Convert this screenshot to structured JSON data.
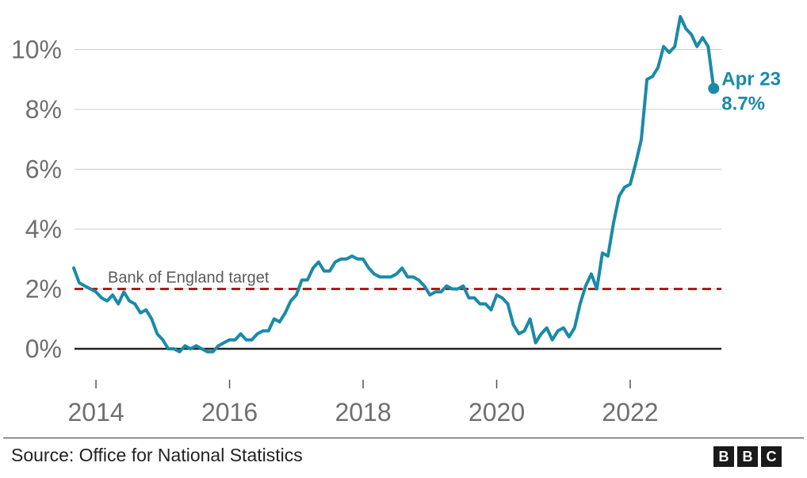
{
  "chart_data": {
    "type": "line",
    "title": "",
    "xlabel": "",
    "ylabel": "",
    "y_ticks": [
      0,
      2,
      4,
      6,
      8,
      10
    ],
    "y_tick_labels": [
      "0%",
      "2%",
      "4%",
      "6%",
      "8%",
      "10%"
    ],
    "ylim": [
      -1.2,
      11.5
    ],
    "x_tick_years": [
      2014,
      2016,
      2018,
      2020,
      2022
    ],
    "x_tick_labels": [
      "2014",
      "2016",
      "2018",
      "2020",
      "2022"
    ],
    "xlim": [
      "2013-09",
      "2023-04"
    ],
    "grid": "horizontal",
    "series": [
      {
        "color": "#1a8aa8",
        "x": [
          "2013-09",
          "2013-10",
          "2013-11",
          "2013-12",
          "2014-01",
          "2014-02",
          "2014-03",
          "2014-04",
          "2014-05",
          "2014-06",
          "2014-07",
          "2014-08",
          "2014-09",
          "2014-10",
          "2014-11",
          "2014-12",
          "2015-01",
          "2015-02",
          "2015-03",
          "2015-04",
          "2015-05",
          "2015-06",
          "2015-07",
          "2015-08",
          "2015-09",
          "2015-10",
          "2015-11",
          "2015-12",
          "2016-01",
          "2016-02",
          "2016-03",
          "2016-04",
          "2016-05",
          "2016-06",
          "2016-07",
          "2016-08",
          "2016-09",
          "2016-10",
          "2016-11",
          "2016-12",
          "2017-01",
          "2017-02",
          "2017-03",
          "2017-04",
          "2017-05",
          "2017-06",
          "2017-07",
          "2017-08",
          "2017-09",
          "2017-10",
          "2017-11",
          "2017-12",
          "2018-01",
          "2018-02",
          "2018-03",
          "2018-04",
          "2018-05",
          "2018-06",
          "2018-07",
          "2018-08",
          "2018-09",
          "2018-10",
          "2018-11",
          "2018-12",
          "2019-01",
          "2019-02",
          "2019-03",
          "2019-04",
          "2019-05",
          "2019-06",
          "2019-07",
          "2019-08",
          "2019-09",
          "2019-10",
          "2019-11",
          "2019-12",
          "2020-01",
          "2020-02",
          "2020-03",
          "2020-04",
          "2020-05",
          "2020-06",
          "2020-07",
          "2020-08",
          "2020-09",
          "2020-10",
          "2020-11",
          "2020-12",
          "2021-01",
          "2021-02",
          "2021-03",
          "2021-04",
          "2021-05",
          "2021-06",
          "2021-07",
          "2021-08",
          "2021-09",
          "2021-10",
          "2021-11",
          "2021-12",
          "2022-01",
          "2022-02",
          "2022-03",
          "2022-04",
          "2022-05",
          "2022-06",
          "2022-07",
          "2022-08",
          "2022-09",
          "2022-10",
          "2022-11",
          "2022-12",
          "2023-01",
          "2023-02",
          "2023-03",
          "2023-04"
        ],
        "y": [
          2.7,
          2.2,
          2.1,
          2.0,
          1.9,
          1.7,
          1.6,
          1.8,
          1.5,
          1.9,
          1.6,
          1.5,
          1.2,
          1.3,
          1.0,
          0.5,
          0.3,
          0.0,
          0.0,
          -0.1,
          0.1,
          0.0,
          0.1,
          0.0,
          -0.1,
          -0.1,
          0.1,
          0.2,
          0.3,
          0.3,
          0.5,
          0.3,
          0.3,
          0.5,
          0.6,
          0.6,
          1.0,
          0.9,
          1.2,
          1.6,
          1.8,
          2.3,
          2.3,
          2.7,
          2.9,
          2.6,
          2.6,
          2.9,
          3.0,
          3.0,
          3.1,
          3.0,
          3.0,
          2.7,
          2.5,
          2.4,
          2.4,
          2.4,
          2.5,
          2.7,
          2.4,
          2.4,
          2.3,
          2.1,
          1.8,
          1.9,
          1.9,
          2.1,
          2.0,
          2.0,
          2.1,
          1.7,
          1.7,
          1.5,
          1.5,
          1.3,
          1.8,
          1.7,
          1.5,
          0.8,
          0.5,
          0.6,
          1.0,
          0.2,
          0.5,
          0.7,
          0.3,
          0.6,
          0.7,
          0.4,
          0.7,
          1.5,
          2.1,
          2.5,
          2.0,
          3.2,
          3.1,
          4.2,
          5.1,
          5.4,
          5.5,
          6.2,
          7.0,
          9.0,
          9.1,
          9.4,
          10.1,
          9.9,
          10.1,
          11.1,
          10.7,
          10.5,
          10.1,
          10.4,
          10.1,
          8.7
        ]
      }
    ],
    "reference_line": {
      "value": 2,
      "label": "Bank of England target",
      "color": "#b01c1c",
      "style": "dashed"
    },
    "endpoint_label": {
      "date_text": "Apr 23",
      "value_text": "8.7%"
    }
  },
  "footer": {
    "source": "Source: Office for National Statistics",
    "logo_letters": [
      "B",
      "B",
      "C"
    ]
  }
}
